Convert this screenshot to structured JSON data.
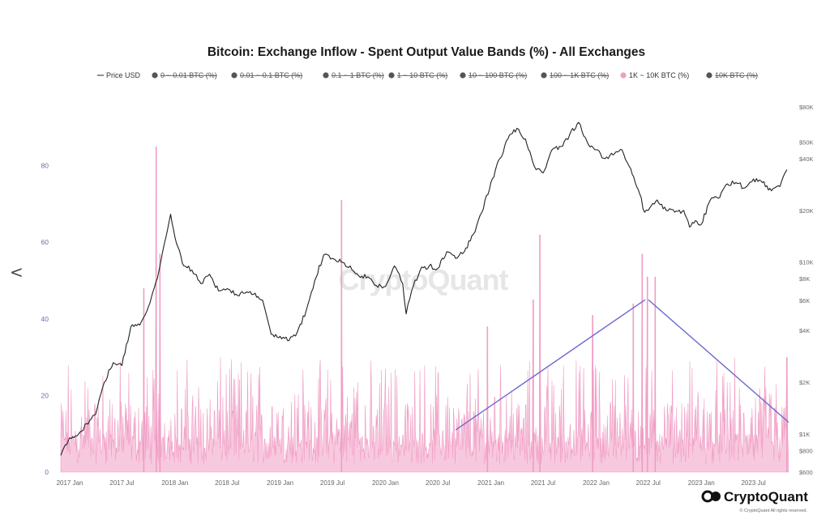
{
  "nav": {
    "back_icon": "chevron-left-icon",
    "back_glyph": "<"
  },
  "chart_data": {
    "type": "area",
    "title": "Bitcoin: Exchange Inflow - Spent Output Value Bands (%) - All Exchanges",
    "legend": [
      {
        "label": "Price USD",
        "kind": "line",
        "color": "#222222",
        "active": true
      },
      {
        "label": "0 ~ 0.01 BTC (%)",
        "kind": "dot",
        "color": "#555555",
        "active": false
      },
      {
        "label": "0.01 ~ 0.1 BTC (%)",
        "kind": "dot",
        "color": "#555555",
        "active": false
      },
      {
        "label": "0.1 ~ 1 BTC (%)",
        "kind": "dot",
        "color": "#555555",
        "active": false
      },
      {
        "label": "1 ~ 10 BTC (%)",
        "kind": "dot",
        "color": "#555555",
        "active": false
      },
      {
        "label": "10 ~ 100 BTC (%)",
        "kind": "dot",
        "color": "#555555",
        "active": false
      },
      {
        "label": "100 ~ 1K BTC (%)",
        "kind": "dot",
        "color": "#555555",
        "active": false
      },
      {
        "label": "1K ~ 10K BTC (%)",
        "kind": "dot",
        "color": "#f09cc4",
        "active": true
      },
      {
        "label": "10K BTC (%)",
        "kind": "dot",
        "color": "#555555",
        "active": false
      }
    ],
    "x_ticks": [
      "2017 Jan",
      "2017 Jul",
      "2018 Jan",
      "2018 Jul",
      "2019 Jan",
      "2019 Jul",
      "2020 Jan",
      "2020 Jul",
      "2021 Jan",
      "2021 Jul",
      "2022 Jan",
      "2022 Jul",
      "2023 Jan",
      "2023 Jul"
    ],
    "x_range": [
      "2016-12-01",
      "2023-10-31"
    ],
    "left_axis": {
      "ticks": [
        0,
        20,
        40,
        60,
        80
      ],
      "ylim": [
        0,
        100
      ]
    },
    "right_axis": {
      "scale": "log",
      "ticks": [
        "$600",
        "$800",
        "$1K",
        "$2K",
        "$4K",
        "$6K",
        "$8K",
        "$10K",
        "$20K",
        "$40K",
        "$50K",
        "$80K"
      ],
      "tick_values": [
        600,
        800,
        1000,
        2000,
        4000,
        6000,
        8000,
        10000,
        20000,
        40000,
        50000,
        80000
      ],
      "ylim": [
        600,
        80000
      ]
    },
    "series": [
      {
        "name": "Price USD",
        "axis": "right",
        "color": "#222222",
        "points": [
          [
            "2016-12-01",
            750
          ],
          [
            "2017-01-01",
            950
          ],
          [
            "2017-02-01",
            1000
          ],
          [
            "2017-03-01",
            1150
          ],
          [
            "2017-04-01",
            1300
          ],
          [
            "2017-05-01",
            2000
          ],
          [
            "2017-06-01",
            2600
          ],
          [
            "2017-07-01",
            2500
          ],
          [
            "2017-08-01",
            4200
          ],
          [
            "2017-09-01",
            4300
          ],
          [
            "2017-10-01",
            5500
          ],
          [
            "2017-11-01",
            8000
          ],
          [
            "2017-12-01",
            14000
          ],
          [
            "2017-12-17",
            19000
          ],
          [
            "2018-01-01",
            14000
          ],
          [
            "2018-02-01",
            9500
          ],
          [
            "2018-03-01",
            9000
          ],
          [
            "2018-04-01",
            7500
          ],
          [
            "2018-05-01",
            8500
          ],
          [
            "2018-06-01",
            6800
          ],
          [
            "2018-07-01",
            7000
          ],
          [
            "2018-08-01",
            6500
          ],
          [
            "2018-09-01",
            6600
          ],
          [
            "2018-10-01",
            6500
          ],
          [
            "2018-11-01",
            6000
          ],
          [
            "2018-12-01",
            3800
          ],
          [
            "2019-01-01",
            3700
          ],
          [
            "2019-02-01",
            3500
          ],
          [
            "2019-03-01",
            3900
          ],
          [
            "2019-04-01",
            5200
          ],
          [
            "2019-05-01",
            7800
          ],
          [
            "2019-06-01",
            11000
          ],
          [
            "2019-07-01",
            10500
          ],
          [
            "2019-08-01",
            10000
          ],
          [
            "2019-09-01",
            9500
          ],
          [
            "2019-10-01",
            8300
          ],
          [
            "2019-11-01",
            8200
          ],
          [
            "2019-12-01",
            7300
          ],
          [
            "2020-01-01",
            7200
          ],
          [
            "2020-02-01",
            9500
          ],
          [
            "2020-03-01",
            7500
          ],
          [
            "2020-03-13",
            5000
          ],
          [
            "2020-04-01",
            6800
          ],
          [
            "2020-05-01",
            9000
          ],
          [
            "2020-06-01",
            9500
          ],
          [
            "2020-07-01",
            9200
          ],
          [
            "2020-08-01",
            11500
          ],
          [
            "2020-09-01",
            10500
          ],
          [
            "2020-10-01",
            11500
          ],
          [
            "2020-11-01",
            14500
          ],
          [
            "2020-12-01",
            19500
          ],
          [
            "2021-01-01",
            29000
          ],
          [
            "2021-02-01",
            40000
          ],
          [
            "2021-03-01",
            52000
          ],
          [
            "2021-04-01",
            60000
          ],
          [
            "2021-05-01",
            52000
          ],
          [
            "2021-06-01",
            36000
          ],
          [
            "2021-07-01",
            33000
          ],
          [
            "2021-08-01",
            45000
          ],
          [
            "2021-09-01",
            47000
          ],
          [
            "2021-10-01",
            55000
          ],
          [
            "2021-11-01",
            65000
          ],
          [
            "2021-12-01",
            50000
          ],
          [
            "2022-01-01",
            45000
          ],
          [
            "2022-02-01",
            40000
          ],
          [
            "2022-03-01",
            42000
          ],
          [
            "2022-04-01",
            45000
          ],
          [
            "2022-05-01",
            35000
          ],
          [
            "2022-06-01",
            25000
          ],
          [
            "2022-06-18",
            19500
          ],
          [
            "2022-07-01",
            20000
          ],
          [
            "2022-08-01",
            23000
          ],
          [
            "2022-09-01",
            20000
          ],
          [
            "2022-10-01",
            19500
          ],
          [
            "2022-11-01",
            20000
          ],
          [
            "2022-11-21",
            16000
          ],
          [
            "2022-12-01",
            17000
          ],
          [
            "2023-01-01",
            16600
          ],
          [
            "2023-02-01",
            23000
          ],
          [
            "2023-03-01",
            23500
          ],
          [
            "2023-04-01",
            28500
          ],
          [
            "2023-05-01",
            29000
          ],
          [
            "2023-06-01",
            27000
          ],
          [
            "2023-07-01",
            30500
          ],
          [
            "2023-08-01",
            29000
          ],
          [
            "2023-09-01",
            26000
          ],
          [
            "2023-10-01",
            27500
          ],
          [
            "2023-10-25",
            34500
          ]
        ]
      },
      {
        "name": "1K ~ 10K BTC (%)",
        "axis": "left",
        "color": "#f09cc4",
        "note_baseline": "daily values mostly between 2 and 25 percent",
        "spikes": [
          [
            "2017-10-28",
            85
          ],
          [
            "2017-11-10",
            57
          ],
          [
            "2017-09-15",
            48
          ],
          [
            "2019-08-02",
            71
          ],
          [
            "2020-12-20",
            38
          ],
          [
            "2021-06-20",
            62
          ],
          [
            "2021-05-28",
            45
          ],
          [
            "2022-06-10",
            57
          ],
          [
            "2022-06-28",
            51
          ],
          [
            "2022-07-25",
            51
          ],
          [
            "2022-05-10",
            44
          ],
          [
            "2021-12-20",
            41
          ],
          [
            "2023-10-25",
            30
          ]
        ]
      }
    ],
    "annotations": [
      {
        "type": "trend-line",
        "color": "#6b6bd0",
        "from": [
          "2020-09-01",
          11
        ],
        "to": [
          "2022-06-20",
          45
        ]
      },
      {
        "type": "trend-line",
        "color": "#6b6bd0",
        "from": [
          "2022-07-01",
          45
        ],
        "to": [
          "2023-10-31",
          13
        ]
      }
    ],
    "watermark": "CryptoQuant"
  },
  "footer": {
    "brand": "CryptoQuant",
    "brand_icon": "cryptoquant-logo-icon",
    "copyright": "© CryptoQuant All rights reserved."
  }
}
